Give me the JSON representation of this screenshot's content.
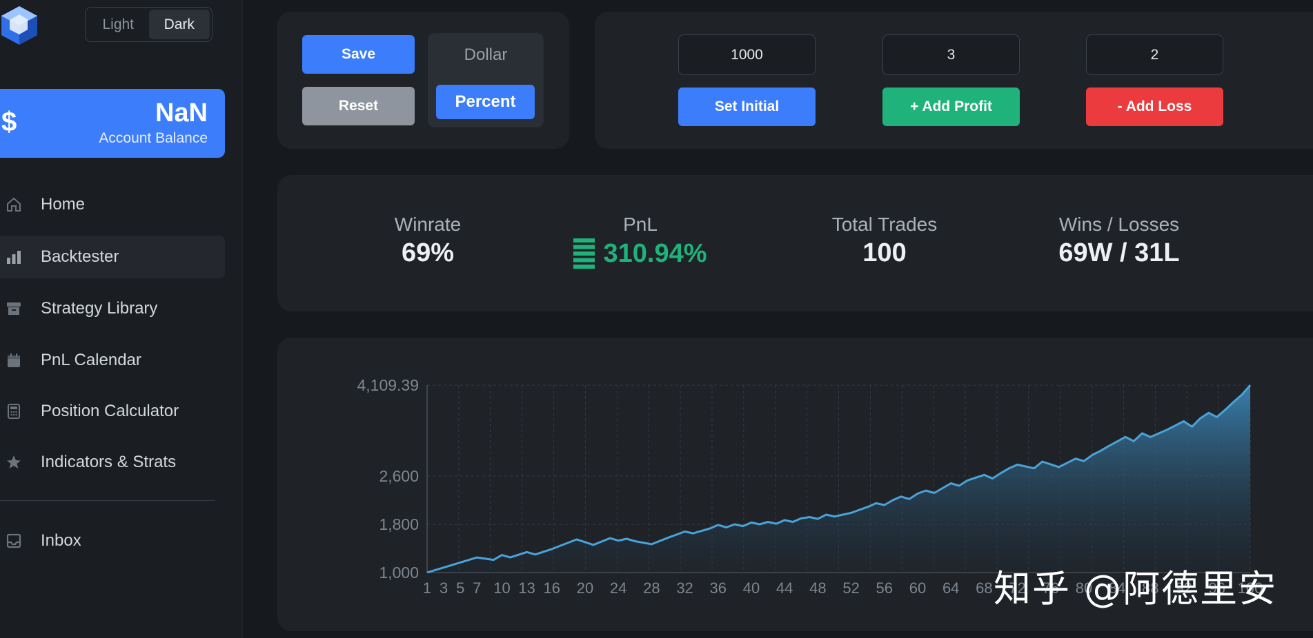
{
  "theme": {
    "light_label": "Light",
    "dark_label": "Dark",
    "selected": "Dark"
  },
  "balance": {
    "symbol": "$",
    "value": "NaN",
    "label": "Account Balance"
  },
  "nav": {
    "items": [
      {
        "label": "Home",
        "icon": "home-icon"
      },
      {
        "label": "Backtester",
        "icon": "bar-chart-icon",
        "active": true
      },
      {
        "label": "Strategy Library",
        "icon": "archive-icon"
      },
      {
        "label": "PnL Calendar",
        "icon": "calendar-icon"
      },
      {
        "label": "Position Calculator",
        "icon": "calculator-icon"
      },
      {
        "label": "Indicators & Strats",
        "icon": "star-icon"
      },
      {
        "label": "Inbox",
        "icon": "inbox-icon"
      }
    ]
  },
  "controls": {
    "save_label": "Save",
    "reset_label": "Reset",
    "unit_dollar": "Dollar",
    "unit_percent": "Percent",
    "unit_selected": "Percent"
  },
  "trade": {
    "initial_value": "1000",
    "profit_value": "3",
    "loss_value": "2",
    "set_initial_label": "Set Initial",
    "add_profit_label": "+ Add Profit",
    "add_loss_label": "- Add Loss"
  },
  "stats": {
    "winrate_title": "Winrate",
    "winrate_value": "69%",
    "pnl_title": "PnL",
    "pnl_value": "310.94%",
    "total_trades_title": "Total Trades",
    "total_trades_value": "100",
    "wins_losses_title": "Wins / Losses",
    "wins_losses_value": "69W / 31L"
  },
  "colors": {
    "accent": "#3b7dfa",
    "profit": "#1fb27a",
    "loss": "#ec3b3f",
    "neutral": "#8e959e",
    "line": "#4aa3d8"
  },
  "chart_data": {
    "type": "area",
    "y_tick_labels": [
      "4,109.39",
      "2,600",
      "1,800",
      "1,000"
    ],
    "y_ticks": [
      4109.39,
      2600,
      1800,
      1000
    ],
    "ylim": [
      1000,
      4109.39
    ],
    "x_tick_labels": [
      "1",
      "3",
      "5",
      "7",
      "10",
      "13",
      "16",
      "20",
      "24",
      "28",
      "32",
      "36",
      "40",
      "44",
      "48",
      "52",
      "56",
      "60",
      "64",
      "68",
      "72",
      "76",
      "80",
      "84",
      "88",
      "92",
      "96",
      "100"
    ],
    "xlim": [
      1,
      100
    ],
    "grid": true,
    "series": [
      {
        "x": [
          1,
          7,
          9,
          10,
          11,
          13,
          14,
          16,
          19,
          21,
          23,
          24,
          25,
          26,
          28,
          30,
          32,
          33,
          35,
          36,
          37,
          38,
          39,
          40,
          41,
          42,
          43,
          44,
          45,
          46,
          47,
          48,
          49,
          50,
          52,
          53,
          54,
          55,
          56,
          57,
          58,
          59,
          60,
          61,
          62,
          63,
          64,
          65,
          66,
          68,
          69,
          70,
          71,
          72,
          74,
          75,
          77,
          79,
          80,
          81,
          82,
          83,
          85,
          86,
          87,
          88,
          90,
          92,
          93,
          94,
          95,
          96,
          97,
          98,
          99,
          100
        ],
        "values": [
          1000,
          1250,
          1210,
          1290,
          1250,
          1340,
          1300,
          1390,
          1550,
          1460,
          1570,
          1530,
          1560,
          1520,
          1470,
          1580,
          1680,
          1650,
          1730,
          1790,
          1750,
          1800,
          1770,
          1830,
          1800,
          1840,
          1810,
          1870,
          1840,
          1900,
          1920,
          1890,
          1960,
          1930,
          1990,
          2040,
          2090,
          2150,
          2120,
          2200,
          2260,
          2220,
          2310,
          2360,
          2320,
          2400,
          2480,
          2440,
          2530,
          2620,
          2560,
          2650,
          2730,
          2790,
          2730,
          2840,
          2750,
          2890,
          2850,
          2950,
          3020,
          3100,
          3250,
          3180,
          3310,
          3250,
          3370,
          3510,
          3420,
          3560,
          3650,
          3580,
          3700,
          3830,
          3950,
          4109.39
        ]
      }
    ]
  },
  "watermark": "知乎 @阿德里安"
}
